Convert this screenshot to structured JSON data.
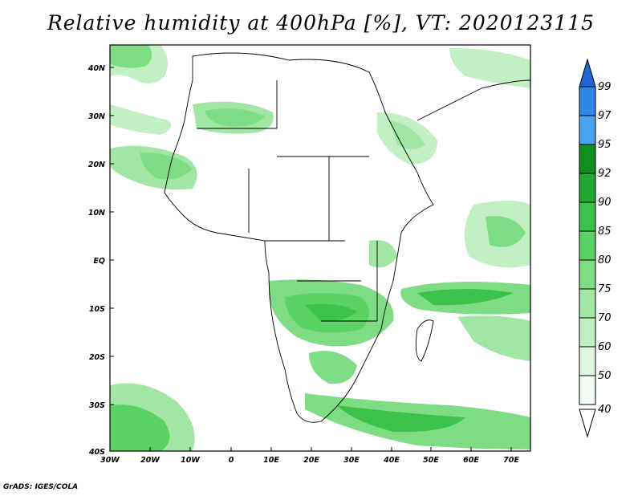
{
  "title": "Relative humidity at 400hPa [%], VT: 2020123115",
  "lat_labels": [
    "40N",
    "30N",
    "20N",
    "10N",
    "EQ",
    "10S",
    "20S",
    "30S",
    "40S"
  ],
  "lon_labels": [
    "30W",
    "20W",
    "10W",
    "0",
    "10E",
    "20E",
    "30E",
    "40E",
    "50E",
    "60E",
    "70E"
  ],
  "colorbar": {
    "levels": [
      "99",
      "97",
      "95",
      "92",
      "90",
      "85",
      "80",
      "75",
      "70",
      "60",
      "50",
      "40"
    ],
    "colors": [
      "#1f66d4",
      "#2e86e6",
      "#4aa3f0",
      "#0f8f1f",
      "#22a832",
      "#3cc24a",
      "#5ad264",
      "#7edc84",
      "#a2e6a6",
      "#c3efc4",
      "#dff7e0",
      "#f3fcf3"
    ]
  },
  "credit": "GrADS: IGES/COLA"
}
